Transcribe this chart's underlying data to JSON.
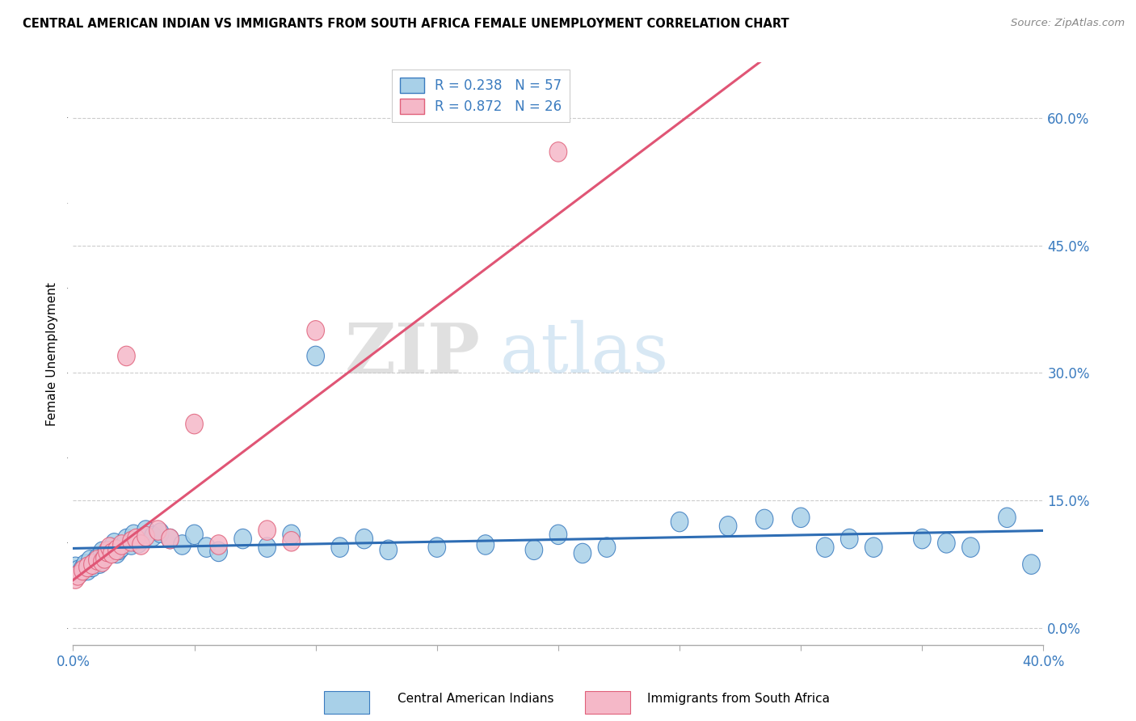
{
  "title": "CENTRAL AMERICAN INDIAN VS IMMIGRANTS FROM SOUTH AFRICA FEMALE UNEMPLOYMENT CORRELATION CHART",
  "source": "Source: ZipAtlas.com",
  "ylabel": "Female Unemployment",
  "xlim": [
    0.0,
    0.4
  ],
  "ylim": [
    -0.02,
    0.665
  ],
  "xtick_positions": [
    0.0,
    0.05,
    0.1,
    0.15,
    0.2,
    0.25,
    0.3,
    0.35,
    0.4
  ],
  "ytick_positions": [
    0.0,
    0.15,
    0.3,
    0.45,
    0.6
  ],
  "ytick_labels": [
    "0.0%",
    "15.0%",
    "30.0%",
    "45.0%",
    "60.0%"
  ],
  "legend1_R": "0.238",
  "legend1_N": "57",
  "legend2_R": "0.872",
  "legend2_N": "26",
  "legend_x_label": "Central American Indians",
  "legend_y_label": "Immigrants from South Africa",
  "blue_fill": "#a8d0e8",
  "blue_edge": "#3a7bbf",
  "pink_fill": "#f5b8c8",
  "pink_edge": "#e0607a",
  "blue_line": "#2e6db4",
  "pink_line": "#e05575",
  "watermark_zip": "ZIP",
  "watermark_atlas": "atlas",
  "grid_color": "#cccccc",
  "axis_label_color": "#3a7bbf",
  "blue_scatter_x": [
    0.001,
    0.002,
    0.003,
    0.004,
    0.005,
    0.006,
    0.007,
    0.008,
    0.009,
    0.01,
    0.011,
    0.012,
    0.013,
    0.014,
    0.015,
    0.016,
    0.017,
    0.018,
    0.019,
    0.02,
    0.022,
    0.024,
    0.025,
    0.027,
    0.03,
    0.033,
    0.036,
    0.04,
    0.045,
    0.05,
    0.055,
    0.06,
    0.07,
    0.08,
    0.09,
    0.1,
    0.11,
    0.12,
    0.13,
    0.15,
    0.17,
    0.19,
    0.2,
    0.21,
    0.22,
    0.25,
    0.27,
    0.285,
    0.3,
    0.31,
    0.32,
    0.33,
    0.35,
    0.36,
    0.37,
    0.385,
    0.395
  ],
  "blue_scatter_y": [
    0.072,
    0.068,
    0.065,
    0.07,
    0.075,
    0.068,
    0.08,
    0.072,
    0.078,
    0.082,
    0.076,
    0.09,
    0.085,
    0.088,
    0.092,
    0.095,
    0.1,
    0.088,
    0.092,
    0.095,
    0.105,
    0.098,
    0.11,
    0.1,
    0.115,
    0.108,
    0.112,
    0.105,
    0.098,
    0.11,
    0.095,
    0.09,
    0.105,
    0.095,
    0.11,
    0.32,
    0.095,
    0.105,
    0.092,
    0.095,
    0.098,
    0.092,
    0.11,
    0.088,
    0.095,
    0.125,
    0.12,
    0.128,
    0.13,
    0.095,
    0.105,
    0.095,
    0.105,
    0.1,
    0.095,
    0.13,
    0.075
  ],
  "pink_scatter_x": [
    0.001,
    0.002,
    0.004,
    0.006,
    0.008,
    0.01,
    0.012,
    0.013,
    0.014,
    0.015,
    0.016,
    0.018,
    0.02,
    0.022,
    0.024,
    0.026,
    0.028,
    0.03,
    0.035,
    0.04,
    0.05,
    0.06,
    0.08,
    0.09,
    0.1,
    0.2
  ],
  "pink_scatter_y": [
    0.058,
    0.062,
    0.068,
    0.072,
    0.075,
    0.08,
    0.078,
    0.082,
    0.09,
    0.095,
    0.088,
    0.092,
    0.098,
    0.32,
    0.102,
    0.105,
    0.098,
    0.108,
    0.115,
    0.105,
    0.24,
    0.098,
    0.115,
    0.102,
    0.35,
    0.56
  ]
}
